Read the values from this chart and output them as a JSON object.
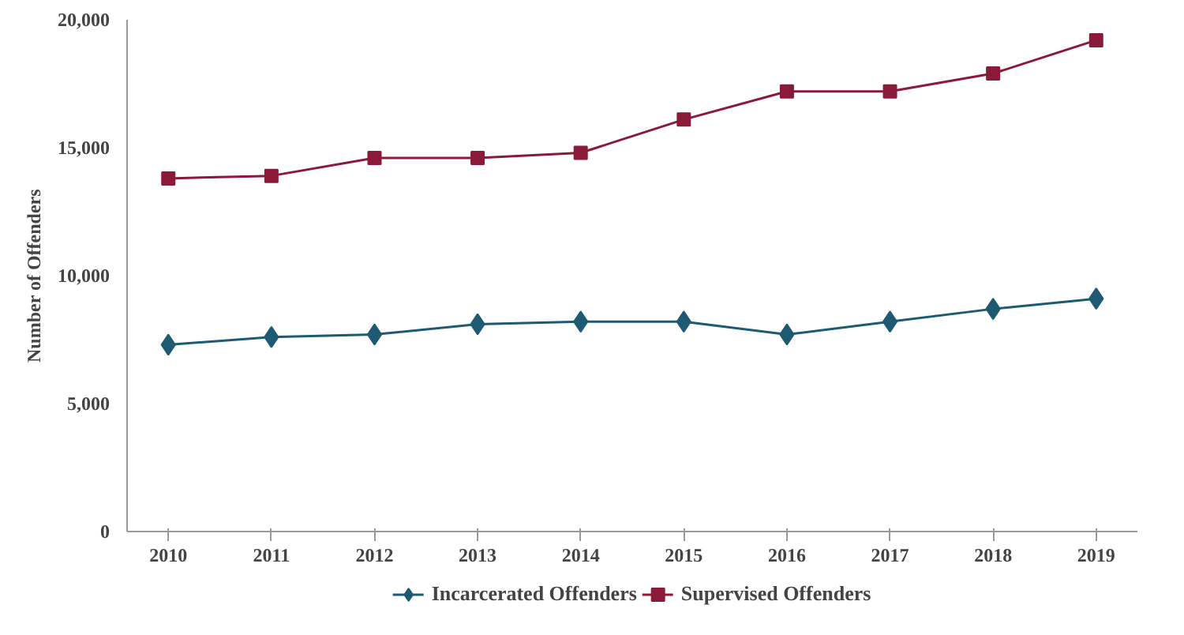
{
  "chart_data": {
    "type": "line",
    "ylabel": "Number of Offenders",
    "categories": [
      "2010",
      "2011",
      "2012",
      "2013",
      "2014",
      "2015",
      "2016",
      "2017",
      "2018",
      "2019"
    ],
    "series": [
      {
        "name": "Incarcerated Offenders",
        "color": "#1f5a73",
        "marker": "diamond",
        "values": [
          7300,
          7600,
          7700,
          8100,
          8200,
          8200,
          7700,
          8200,
          8700,
          9100
        ]
      },
      {
        "name": "Supervised Offenders",
        "color": "#8b1a3a",
        "marker": "square",
        "values": [
          13800,
          13900,
          14600,
          14600,
          14800,
          16100,
          17200,
          17200,
          17900,
          19200
        ]
      }
    ],
    "ylim": [
      0,
      20000
    ],
    "yticks": [
      {
        "value": 0,
        "label": "0"
      },
      {
        "value": 5000,
        "label": "5,000"
      },
      {
        "value": 10000,
        "label": "10,000"
      },
      {
        "value": 15000,
        "label": "15,000"
      },
      {
        "value": 20000,
        "label": "20,000"
      }
    ],
    "grid": false,
    "legend": "bottom"
  }
}
